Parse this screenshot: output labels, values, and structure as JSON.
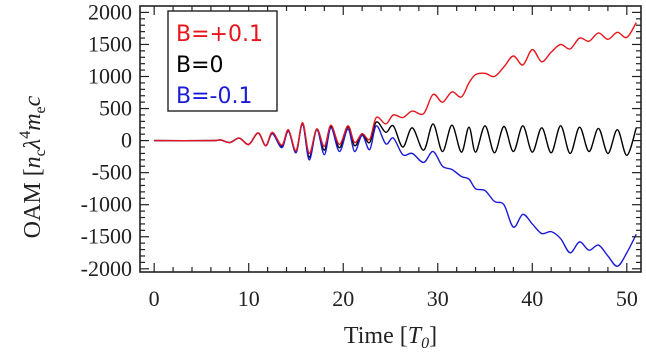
{
  "chart_data": {
    "type": "line",
    "xlabel": {
      "prefix": "Time [",
      "var": "T",
      "sub": "0",
      "suffix": "]"
    },
    "ylabel": {
      "prefix": "OAM [",
      "n": "n",
      "n_sub": "c",
      "lambda": "λ",
      "lambda_sup": "4",
      "m": "m",
      "m_sub": "e",
      "c": "c"
    },
    "xlim": [
      -1.5,
      51.5
    ],
    "ylim": [
      -2050,
      2100
    ],
    "x_ticks": [
      0,
      10,
      20,
      30,
      40,
      50
    ],
    "x_tick_labels": [
      "0",
      "10",
      "20",
      "30",
      "40",
      "50"
    ],
    "y_ticks": [
      2000,
      1500,
      1000,
      500,
      0,
      -500,
      -1000,
      -1500,
      -2000
    ],
    "y_tick_labels": [
      "2000",
      "1500",
      "1000",
      "500",
      "0",
      "-500",
      "-1000",
      "-1500",
      "-2000"
    ],
    "legend_position": "top-left",
    "series": [
      {
        "name": "B=+0.1",
        "color": "#e8161b",
        "x": [
          0,
          6,
          7,
          8,
          9,
          10,
          11,
          11.8,
          12.5,
          13.5,
          14.2,
          15,
          15.7,
          16.4,
          17.2,
          18,
          18.7,
          19.6,
          20.5,
          21.2,
          22,
          22.8,
          23.5,
          24.5,
          25.3,
          26.3,
          27.3,
          28.5,
          29.5,
          30.5,
          31.5,
          32.5,
          33.3,
          34,
          35,
          36,
          37,
          38,
          39,
          40,
          41,
          42,
          43,
          44,
          45,
          46,
          47,
          48,
          49,
          50,
          51
        ],
        "y": [
          0,
          0,
          10,
          -30,
          40,
          -60,
          120,
          -80,
          130,
          -70,
          170,
          -160,
          280,
          -200,
          180,
          -90,
          240,
          -60,
          230,
          -30,
          110,
          20,
          360,
          260,
          400,
          360,
          460,
          420,
          720,
          600,
          760,
          680,
          900,
          1030,
          1050,
          1000,
          1150,
          1320,
          1180,
          1420,
          1230,
          1380,
          1500,
          1430,
          1600,
          1550,
          1680,
          1580,
          1690,
          1610,
          1840
        ]
      },
      {
        "name": "B=0",
        "color": "#000000",
        "x": [
          0,
          6,
          7,
          8,
          9,
          10,
          11,
          11.8,
          12.5,
          13.5,
          14.2,
          15,
          15.7,
          16.4,
          17.2,
          18,
          18.7,
          19.6,
          20.5,
          21.2,
          22,
          22.8,
          23.5,
          24.5,
          25.3,
          26.3,
          27.3,
          28.5,
          29.5,
          30.5,
          31.5,
          32.5,
          33.3,
          34,
          35,
          36,
          37,
          38,
          39,
          40,
          41,
          42,
          43,
          44,
          45,
          46,
          47,
          48,
          49,
          50,
          51
        ],
        "y": [
          0,
          0,
          10,
          -30,
          40,
          -60,
          120,
          -80,
          110,
          -90,
          150,
          -170,
          270,
          -260,
          180,
          -150,
          220,
          -110,
          210,
          -80,
          90,
          -30,
          290,
          130,
          230,
          -100,
          200,
          -150,
          260,
          -170,
          240,
          -180,
          210,
          -180,
          230,
          -190,
          220,
          -170,
          230,
          -180,
          200,
          -190,
          230,
          -200,
          210,
          -170,
          190,
          -200,
          170,
          -230,
          200
        ]
      },
      {
        "name": "B=-0.1",
        "color": "#1a1ad8",
        "x": [
          0,
          6,
          7,
          8,
          9,
          10,
          11,
          11.8,
          12.5,
          13.5,
          14.2,
          15,
          15.7,
          16.4,
          17.2,
          18,
          18.7,
          19.6,
          20.5,
          21.2,
          22,
          22.8,
          23.5,
          24.5,
          25.3,
          26.3,
          27.3,
          28.5,
          29.5,
          30.5,
          31.5,
          32.5,
          33.3,
          34,
          35,
          36,
          37,
          38,
          39,
          40,
          41,
          42,
          43,
          44,
          45,
          46,
          47,
          48,
          49,
          50,
          51
        ],
        "y": [
          0,
          0,
          10,
          -30,
          40,
          -60,
          120,
          -80,
          110,
          -110,
          150,
          -190,
          260,
          -300,
          170,
          -220,
          200,
          -170,
          180,
          -170,
          80,
          -140,
          230,
          -50,
          40,
          -220,
          -200,
          -340,
          -170,
          -400,
          -450,
          -560,
          -600,
          -750,
          -780,
          -950,
          -1000,
          -1350,
          -1150,
          -1300,
          -1450,
          -1420,
          -1530,
          -1750,
          -1580,
          -1710,
          -1630,
          -1800,
          -1960,
          -1750,
          -1460
        ]
      }
    ]
  }
}
